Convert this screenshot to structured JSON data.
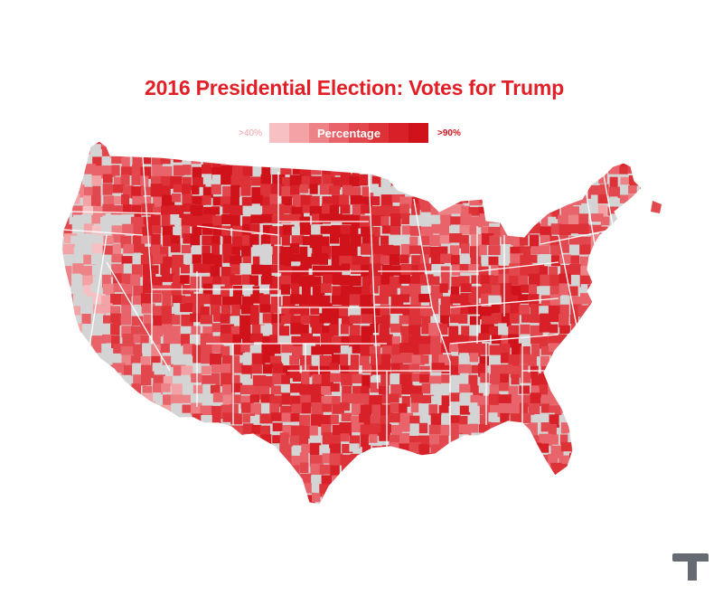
{
  "title": "2016 Presidential Election: Votes for Trump",
  "legend": {
    "low_label": ">40%",
    "title": "Percentage",
    "high_label": ">90%",
    "swatches": [
      "#f7c0c2",
      "#f3a2a5",
      "#ee8387",
      "#e8646a",
      "#e2474e",
      "#dc3238",
      "#d72027",
      "#d0131b"
    ]
  },
  "colors": {
    "title": "#e21e26",
    "no_data": "#d4d4d4",
    "state_border": "#ffffff",
    "logo": "#666b72"
  },
  "map": {
    "region": "Contiguous United States",
    "shading": "county-level share of votes for Trump"
  },
  "logo": {
    "icon": "t-logo-icon"
  }
}
